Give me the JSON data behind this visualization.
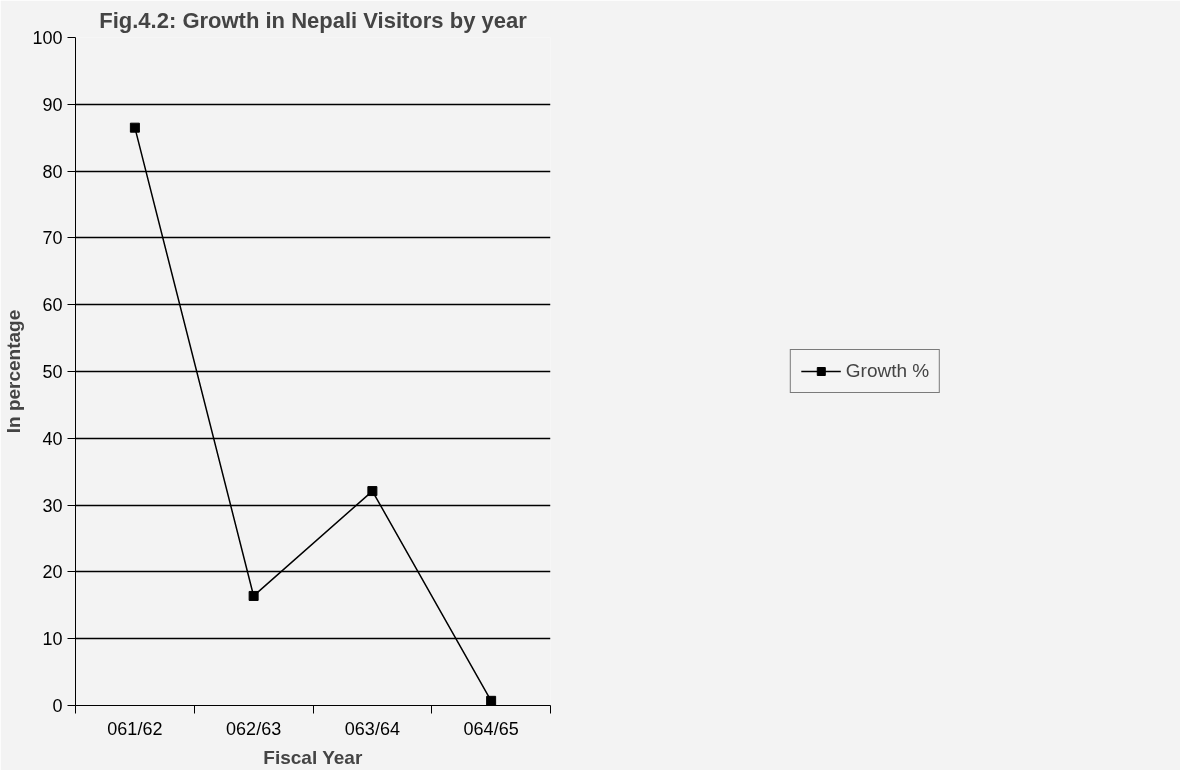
{
  "chart_data": {
    "type": "line",
    "title": "Fig.4.2: Growth in Nepali Visitors by year",
    "xlabel": "Fiscal Year",
    "ylabel": "In percentage",
    "categories": [
      "061/62",
      "062/63",
      "063/64",
      "064/65"
    ],
    "series": [
      {
        "name": "Growth %",
        "color": "#000000",
        "values": [
          86.5,
          16.4,
          32.1,
          0.7
        ]
      }
    ],
    "ylim": [
      0,
      100
    ],
    "yticks": [
      0,
      10,
      20,
      30,
      40,
      50,
      60,
      70,
      80,
      90,
      100
    ],
    "grid": "y",
    "legend": "right",
    "marker": "square",
    "line_style": "solid"
  }
}
